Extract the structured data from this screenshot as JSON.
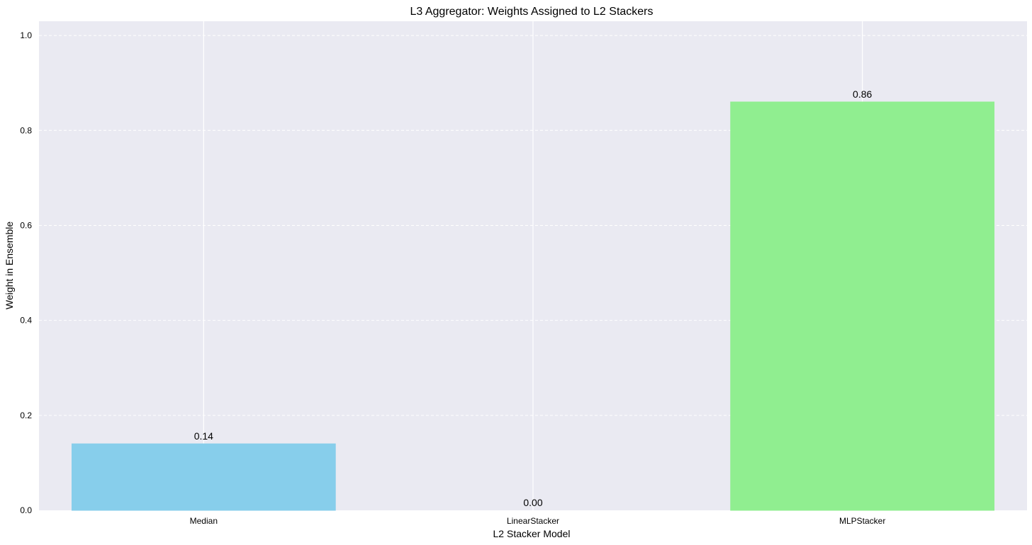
{
  "chart_data": {
    "type": "bar",
    "title": "L3 Aggregator: Weights Assigned to L2 Stackers",
    "xlabel": "L2 Stacker Model",
    "ylabel": "Weight in Ensemble",
    "categories": [
      "Median",
      "LinearStacker",
      "MLPStacker"
    ],
    "values": [
      0.14,
      0.0,
      0.86
    ],
    "value_labels": [
      "0.14",
      "0.00",
      "0.86"
    ],
    "colors": [
      "#87CEEB",
      "#F08080",
      "#90EE90"
    ],
    "ylim": [
      0,
      1.03
    ],
    "yticks": [
      0.0,
      0.2,
      0.4,
      0.6,
      0.8,
      1.0
    ],
    "ytick_labels": [
      "0.0",
      "0.2",
      "0.4",
      "0.6",
      "0.8",
      "1.0"
    ],
    "grid": true,
    "background": "#EAEAF2"
  }
}
